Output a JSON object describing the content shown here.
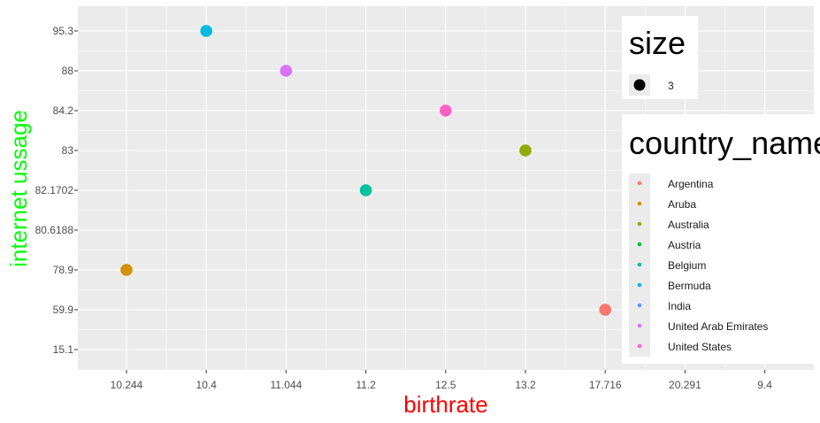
{
  "chart_data": {
    "type": "scatter",
    "title": "",
    "xlabel": "birthrate",
    "ylabel": "internet ussage",
    "xlabel_color": "#ff0000",
    "ylabel_color": "#00ff00",
    "panel_background": "#ebebeb",
    "grid": true,
    "x_scale": "discrete",
    "y_scale": "discrete",
    "x_categories": [
      "10.244",
      "10.4",
      "11.044",
      "11.2",
      "12.5",
      "13.2",
      "17.716",
      "20.291",
      "9.4"
    ],
    "y_categories": [
      "15.1",
      "59.9",
      "78.9",
      "80.6188",
      "82.1702",
      "83",
      "84.2",
      "88",
      "95.3"
    ],
    "points": [
      {
        "country": "Argentina",
        "x": "17.716",
        "y": "59.9",
        "color": "#f8766d"
      },
      {
        "country": "Aruba",
        "x": "10.244",
        "y": "78.9",
        "color": "#d39200"
      },
      {
        "country": "Australia",
        "x": "13.2",
        "y": "83",
        "color": "#93aa00"
      },
      {
        "country": "Belgium",
        "x": "11.2",
        "y": "82.1702",
        "color": "#00c19f"
      },
      {
        "country": "Bermuda",
        "x": "10.4",
        "y": "95.3",
        "color": "#00b9e3"
      },
      {
        "country": "United Arab Emirates",
        "x": "11.044",
        "y": "88",
        "color": "#db72fb"
      },
      {
        "country": "United States",
        "x": "12.5",
        "y": "84.2",
        "color": "#ff61c3"
      }
    ],
    "legend_size": {
      "title": "size",
      "entries": [
        "3"
      ],
      "placement": "right"
    },
    "legend_color": {
      "title": "country_name",
      "placement": "right",
      "entries": [
        {
          "label": "Argentina",
          "color": "#f8766d"
        },
        {
          "label": "Aruba",
          "color": "#d39200"
        },
        {
          "label": "Australia",
          "color": "#93aa00"
        },
        {
          "label": "Austria",
          "color": "#00ba38"
        },
        {
          "label": "Belgium",
          "color": "#00c19f"
        },
        {
          "label": "Bermuda",
          "color": "#00b9e3"
        },
        {
          "label": "India",
          "color": "#619cff"
        },
        {
          "label": "United Arab Emirates",
          "color": "#db72fb"
        },
        {
          "label": "United States",
          "color": "#ff61c3"
        }
      ]
    }
  }
}
